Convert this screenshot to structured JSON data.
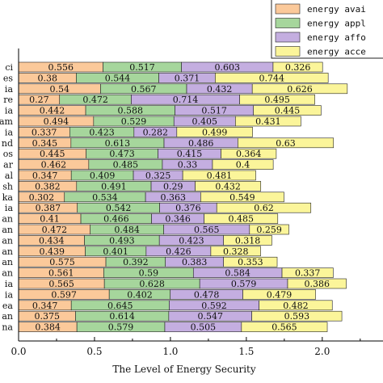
{
  "chart_data": {
    "type": "bar",
    "orientation": "horizontal",
    "stacked": true,
    "xlabel": "The Level of Energy Security",
    "xlim": [
      0,
      2.4
    ],
    "xticks": [
      0.0,
      0.5,
      1.0,
      1.5,
      2.0
    ],
    "xtick_labels": [
      "0.0",
      "0.5",
      "1.0",
      "1.5",
      "2.0"
    ],
    "legend_position": "top-right",
    "categories": [
      "ci",
      "es",
      "ia",
      "re",
      "ia",
      "am",
      "ia",
      "nd",
      "os",
      "ar",
      "al",
      "sh",
      "ka",
      "ia",
      "an",
      "an",
      "an",
      "an",
      "an",
      "an",
      "ia",
      "ia",
      "ea",
      "an",
      "na"
    ],
    "series": [
      {
        "name": "energy avai",
        "color": "#fbc99a",
        "values": [
          0.556,
          0.38,
          0.54,
          0.27,
          0.442,
          0.494,
          0.337,
          0.345,
          0.445,
          0.462,
          0.347,
          0.382,
          0.302,
          0.387,
          0.41,
          0.472,
          0.434,
          0.439,
          0.575,
          0.561,
          0.565,
          0.597,
          0.347,
          0.375,
          0.384
        ]
      },
      {
        "name": "energy appl",
        "color": "#a6d69c",
        "values": [
          0.517,
          0.544,
          0.567,
          0.472,
          0.588,
          0.529,
          0.423,
          0.613,
          0.473,
          0.485,
          0.409,
          0.491,
          0.534,
          0.542,
          0.466,
          0.484,
          0.493,
          0.401,
          0.392,
          0.59,
          0.628,
          0.402,
          0.645,
          0.614,
          0.579
        ]
      },
      {
        "name": "energy affo",
        "color": "#c4aee0",
        "values": [
          0.603,
          0.371,
          0.432,
          0.714,
          0.517,
          0.405,
          0.282,
          0.486,
          0.415,
          0.33,
          0.325,
          0.29,
          0.363,
          0.376,
          0.346,
          0.565,
          0.423,
          0.426,
          0.383,
          0.584,
          0.579,
          0.478,
          0.592,
          0.547,
          0.505
        ]
      },
      {
        "name": "energy acce",
        "color": "#fbf59a",
        "values": [
          0.326,
          0.744,
          0.626,
          0.495,
          0.445,
          0.431,
          0.499,
          0.63,
          0.364,
          0.4,
          0.481,
          0.432,
          0.549,
          0.62,
          0.485,
          0.259,
          0.318,
          0.328,
          0.353,
          0.337,
          0.386,
          0.479,
          0.482,
          0.593,
          0.565
        ]
      }
    ]
  }
}
